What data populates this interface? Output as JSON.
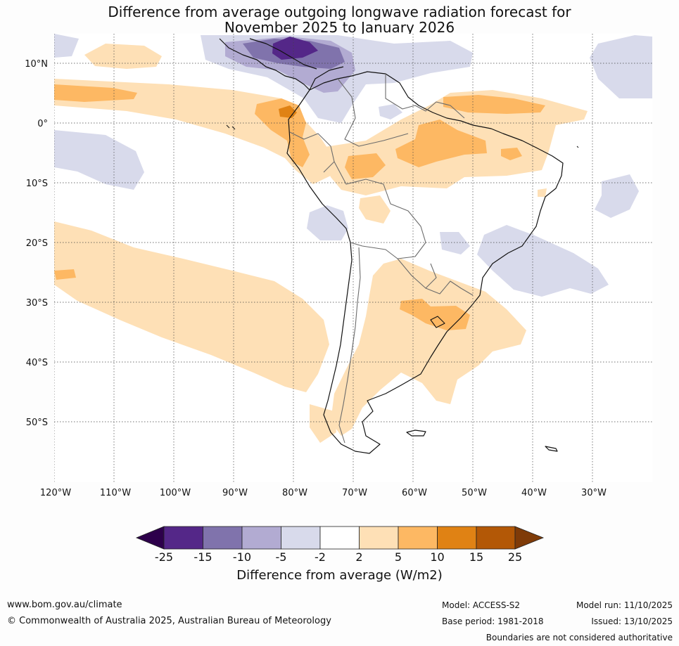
{
  "title": {
    "line1": "Difference from average outgoing longwave radiation forecast for",
    "line2": "November 2025 to January 2026"
  },
  "map": {
    "lat_labels": [
      "10°N",
      "0°",
      "10°S",
      "20°S",
      "30°S",
      "40°S",
      "50°S"
    ],
    "lon_labels": [
      "120°W",
      "110°W",
      "100°W",
      "90°W",
      "80°W",
      "70°W",
      "60°W",
      "50°W",
      "40°W",
      "30°W"
    ]
  },
  "colorbar": {
    "ticks": [
      "-25",
      "-15",
      "-10",
      "-5",
      "-2",
      "2",
      "5",
      "10",
      "15",
      "25"
    ],
    "colors": {
      "lt_-25": "#2d004b",
      "-25_-15": "#542788",
      "-15_-10": "#8073ac",
      "-10_-5": "#b2abd2",
      "-5_-2": "#d8daeb",
      "-2_2": "#ffffff",
      "2_5": "#fee0b6",
      "5_10": "#fdb863",
      "10_15": "#e08214",
      "15_25": "#b35806",
      "gt_25": "#7f3b08"
    },
    "title": "Difference from average (W/m2)"
  },
  "footer": {
    "url": "www.bom.gov.au/climate",
    "copyright": "© Commonwealth of Australia 2025, Australian Bureau of Meteorology",
    "model": "Model: ACCESS-S2",
    "base_period": "Base period: 1981-2018",
    "model_run": "Model run: 11/10/2025",
    "issued": "Issued: 13/10/2025",
    "disclaimer": "Boundaries are not considered authoritative"
  }
}
